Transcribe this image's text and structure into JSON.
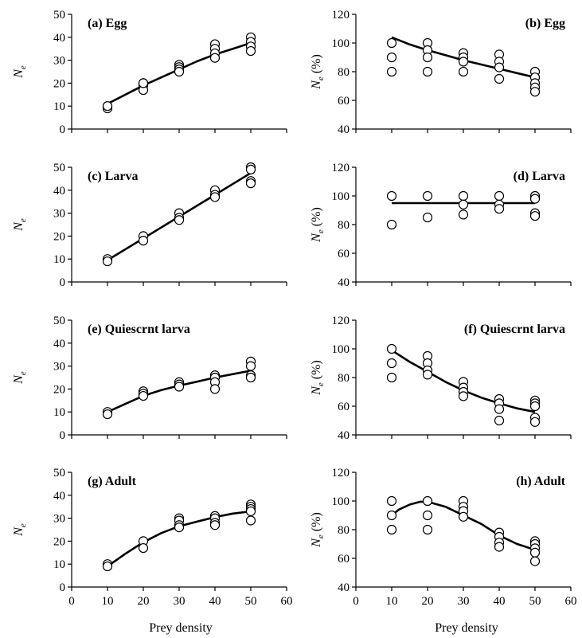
{
  "figure": {
    "xlabel": "Prey density"
  },
  "chart_data": [
    {
      "type": "scatter",
      "title": "(a) Egg",
      "ylabel": "N_e",
      "ylabel_main": "N",
      "ylabel_sub": "e",
      "ylabel_suffix": "",
      "xlim": [
        0,
        60
      ],
      "ylim": [
        0,
        50
      ],
      "xticks": [
        0,
        10,
        20,
        30,
        40,
        50,
        60
      ],
      "yticks": [
        0,
        10,
        20,
        30,
        40,
        50
      ],
      "points": [
        [
          10,
          10
        ],
        [
          10,
          9
        ],
        [
          10,
          10
        ],
        [
          20,
          20
        ],
        [
          20,
          19
        ],
        [
          20,
          17
        ],
        [
          20,
          20
        ],
        [
          30,
          28
        ],
        [
          30,
          27
        ],
        [
          30,
          26
        ],
        [
          30,
          25
        ],
        [
          40,
          37
        ],
        [
          40,
          35
        ],
        [
          40,
          33
        ],
        [
          40,
          31
        ],
        [
          50,
          40
        ],
        [
          50,
          38
        ],
        [
          50,
          36
        ],
        [
          50,
          34
        ]
      ],
      "fit": [
        [
          10,
          11
        ],
        [
          15,
          15
        ],
        [
          20,
          19
        ],
        [
          25,
          22.5
        ],
        [
          30,
          26
        ],
        [
          35,
          29.5
        ],
        [
          40,
          32.5
        ],
        [
          45,
          35
        ],
        [
          50,
          37.5
        ]
      ]
    },
    {
      "type": "scatter",
      "title": "(b) Egg",
      "ylabel": "N_e (%)",
      "ylabel_main": "N",
      "ylabel_sub": "e",
      "ylabel_suffix": " (%)",
      "xlim": [
        0,
        60
      ],
      "ylim": [
        40,
        120
      ],
      "xticks": [
        0,
        10,
        20,
        30,
        40,
        50,
        60
      ],
      "yticks": [
        40,
        60,
        80,
        100,
        120
      ],
      "points": [
        [
          10,
          100
        ],
        [
          10,
          90
        ],
        [
          10,
          80
        ],
        [
          20,
          100
        ],
        [
          20,
          95
        ],
        [
          20,
          90
        ],
        [
          20,
          80
        ],
        [
          30,
          93
        ],
        [
          30,
          90
        ],
        [
          30,
          87
        ],
        [
          30,
          80
        ],
        [
          40,
          92
        ],
        [
          40,
          87
        ],
        [
          40,
          83
        ],
        [
          40,
          75
        ],
        [
          50,
          80
        ],
        [
          50,
          76
        ],
        [
          50,
          72
        ],
        [
          50,
          69
        ],
        [
          50,
          66
        ]
      ],
      "fit": [
        [
          10,
          104
        ],
        [
          15,
          99
        ],
        [
          20,
          95
        ],
        [
          25,
          91.5
        ],
        [
          30,
          88
        ],
        [
          35,
          85
        ],
        [
          40,
          82
        ],
        [
          45,
          79
        ],
        [
          50,
          76
        ]
      ]
    },
    {
      "type": "scatter",
      "title": "(c) Larva",
      "ylabel": "N_e",
      "ylabel_main": "N",
      "ylabel_sub": "e",
      "ylabel_suffix": "",
      "xlim": [
        0,
        60
      ],
      "ylim": [
        0,
        50
      ],
      "xticks": [
        0,
        10,
        20,
        30,
        40,
        50,
        60
      ],
      "yticks": [
        0,
        10,
        20,
        30,
        40,
        50
      ],
      "points": [
        [
          10,
          10
        ],
        [
          10,
          9
        ],
        [
          20,
          20
        ],
        [
          20,
          18
        ],
        [
          30,
          30
        ],
        [
          30,
          28
        ],
        [
          30,
          27
        ],
        [
          40,
          40
        ],
        [
          40,
          38
        ],
        [
          40,
          37
        ],
        [
          50,
          50
        ],
        [
          50,
          49
        ],
        [
          50,
          44
        ],
        [
          50,
          43
        ]
      ],
      "fit": [
        [
          10,
          9.5
        ],
        [
          20,
          19
        ],
        [
          30,
          28.5
        ],
        [
          40,
          38
        ],
        [
          50,
          47.5
        ]
      ]
    },
    {
      "type": "scatter",
      "title": "(d) Larva",
      "ylabel": "N_e (%)",
      "ylabel_main": "N",
      "ylabel_sub": "e",
      "ylabel_suffix": " (%)",
      "xlim": [
        0,
        60
      ],
      "ylim": [
        40,
        120
      ],
      "xticks": [
        0,
        10,
        20,
        30,
        40,
        50,
        60
      ],
      "yticks": [
        40,
        60,
        80,
        100,
        120
      ],
      "points": [
        [
          10,
          100
        ],
        [
          10,
          80
        ],
        [
          20,
          100
        ],
        [
          20,
          85
        ],
        [
          30,
          100
        ],
        [
          30,
          94
        ],
        [
          30,
          87
        ],
        [
          40,
          100
        ],
        [
          40,
          94
        ],
        [
          40,
          91
        ],
        [
          50,
          100
        ],
        [
          50,
          98
        ],
        [
          50,
          88
        ],
        [
          50,
          86
        ]
      ],
      "fit": [
        [
          10,
          95
        ],
        [
          50,
          95
        ]
      ]
    },
    {
      "type": "scatter",
      "title": "(e) Quiescrnt larva",
      "ylabel": "N_e",
      "ylabel_main": "N",
      "ylabel_sub": "e",
      "ylabel_suffix": "",
      "xlim": [
        0,
        60
      ],
      "ylim": [
        0,
        50
      ],
      "xticks": [
        0,
        10,
        20,
        30,
        40,
        50,
        60
      ],
      "yticks": [
        0,
        10,
        20,
        30,
        40,
        50
      ],
      "points": [
        [
          10,
          10
        ],
        [
          10,
          9
        ],
        [
          20,
          19
        ],
        [
          20,
          18
        ],
        [
          20,
          17
        ],
        [
          30,
          23
        ],
        [
          30,
          22
        ],
        [
          30,
          21
        ],
        [
          40,
          26
        ],
        [
          40,
          25
        ],
        [
          40,
          23
        ],
        [
          40,
          20
        ],
        [
          50,
          32
        ],
        [
          50,
          30
        ],
        [
          50,
          26
        ],
        [
          50,
          25
        ]
      ],
      "fit": [
        [
          10,
          10
        ],
        [
          15,
          13.5
        ],
        [
          20,
          17
        ],
        [
          25,
          19.5
        ],
        [
          30,
          21.5
        ],
        [
          35,
          23.2
        ],
        [
          40,
          25
        ],
        [
          45,
          26.5
        ],
        [
          50,
          28
        ]
      ]
    },
    {
      "type": "scatter",
      "title": "(f) Quiescrnt larva",
      "ylabel": "N_e (%)",
      "ylabel_main": "N",
      "ylabel_sub": "e",
      "ylabel_suffix": " (%)",
      "xlim": [
        0,
        60
      ],
      "ylim": [
        40,
        120
      ],
      "xticks": [
        0,
        10,
        20,
        30,
        40,
        50,
        60
      ],
      "yticks": [
        40,
        60,
        80,
        100,
        120
      ],
      "points": [
        [
          10,
          100
        ],
        [
          10,
          90
        ],
        [
          10,
          80
        ],
        [
          20,
          95
        ],
        [
          20,
          90
        ],
        [
          20,
          85
        ],
        [
          20,
          82
        ],
        [
          30,
          77
        ],
        [
          30,
          73
        ],
        [
          30,
          70
        ],
        [
          30,
          67
        ],
        [
          40,
          65
        ],
        [
          40,
          62
        ],
        [
          40,
          58
        ],
        [
          40,
          50
        ],
        [
          50,
          64
        ],
        [
          50,
          62
        ],
        [
          50,
          60
        ],
        [
          50,
          52
        ],
        [
          50,
          49
        ]
      ],
      "fit": [
        [
          10,
          99
        ],
        [
          15,
          91
        ],
        [
          20,
          84
        ],
        [
          25,
          77
        ],
        [
          30,
          71
        ],
        [
          35,
          66
        ],
        [
          40,
          62
        ],
        [
          45,
          58.5
        ],
        [
          50,
          56
        ]
      ]
    },
    {
      "type": "scatter",
      "title": "(g) Adult",
      "ylabel": "N_e",
      "ylabel_main": "N",
      "ylabel_sub": "e",
      "ylabel_suffix": "",
      "xlim": [
        0,
        60
      ],
      "ylim": [
        0,
        50
      ],
      "xticks": [
        0,
        10,
        20,
        30,
        40,
        50,
        60
      ],
      "yticks": [
        0,
        10,
        20,
        30,
        40,
        50
      ],
      "points": [
        [
          10,
          10
        ],
        [
          10,
          9
        ],
        [
          20,
          20
        ],
        [
          20,
          17
        ],
        [
          30,
          30
        ],
        [
          30,
          29
        ],
        [
          30,
          27
        ],
        [
          30,
          26
        ],
        [
          40,
          31
        ],
        [
          40,
          30
        ],
        [
          40,
          28
        ],
        [
          40,
          27
        ],
        [
          50,
          36
        ],
        [
          50,
          35
        ],
        [
          50,
          34
        ],
        [
          50,
          33
        ],
        [
          50,
          29
        ]
      ],
      "fit": [
        [
          10,
          9
        ],
        [
          15,
          14.5
        ],
        [
          20,
          19.5
        ],
        [
          25,
          23.5
        ],
        [
          30,
          26.5
        ],
        [
          35,
          28.5
        ],
        [
          40,
          30.5
        ],
        [
          45,
          32
        ],
        [
          50,
          33
        ]
      ]
    },
    {
      "type": "scatter",
      "title": "(h) Adult",
      "ylabel": "N_e (%)",
      "ylabel_main": "N",
      "ylabel_sub": "e",
      "ylabel_suffix": " (%)",
      "xlim": [
        0,
        60
      ],
      "ylim": [
        40,
        120
      ],
      "xticks": [
        0,
        10,
        20,
        30,
        40,
        50,
        60
      ],
      "yticks": [
        40,
        60,
        80,
        100,
        120
      ],
      "points": [
        [
          10,
          100
        ],
        [
          10,
          90
        ],
        [
          10,
          80
        ],
        [
          20,
          100
        ],
        [
          20,
          90
        ],
        [
          20,
          80
        ],
        [
          30,
          100
        ],
        [
          30,
          96
        ],
        [
          30,
          93
        ],
        [
          30,
          89
        ],
        [
          40,
          78
        ],
        [
          40,
          75
        ],
        [
          40,
          71
        ],
        [
          40,
          68
        ],
        [
          50,
          72
        ],
        [
          50,
          70
        ],
        [
          50,
          67
        ],
        [
          50,
          64
        ],
        [
          50,
          58
        ]
      ],
      "fit": [
        [
          10,
          90
        ],
        [
          12,
          94
        ],
        [
          15,
          97.5
        ],
        [
          18,
          99.5
        ],
        [
          20,
          99.5
        ],
        [
          25,
          96
        ],
        [
          30,
          90
        ],
        [
          35,
          84
        ],
        [
          40,
          76
        ],
        [
          45,
          70
        ],
        [
          50,
          66
        ]
      ]
    }
  ]
}
